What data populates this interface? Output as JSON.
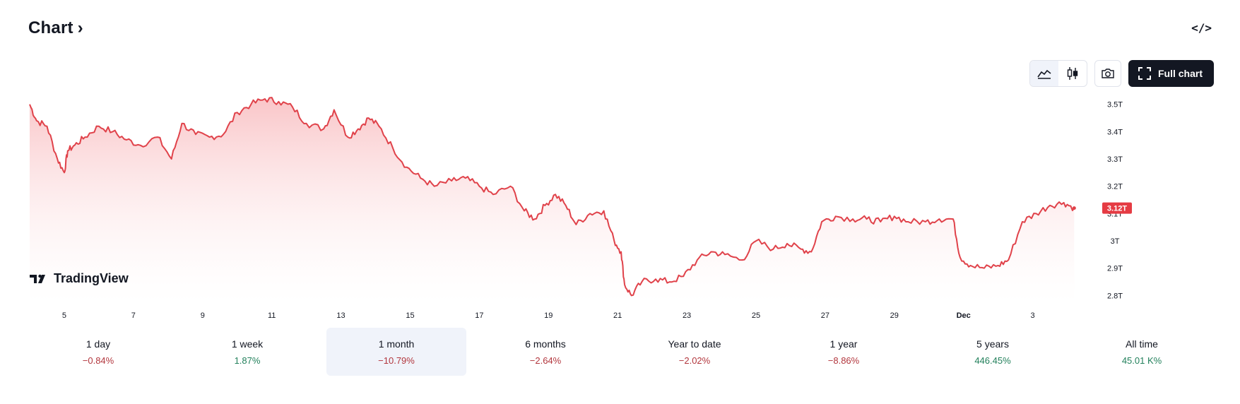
{
  "header": {
    "title": "Chart",
    "embed_label": "</>"
  },
  "toolbar": {
    "full_chart_label": "Full chart"
  },
  "icons": {
    "title_chevron": "chevron-right-icon",
    "embed": "code-icon",
    "area": "area-chart-icon",
    "candles": "candlestick-icon",
    "camera": "camera-icon",
    "fullscreen": "fullscreen-icon"
  },
  "colors": {
    "line": "#e0424a",
    "area_top": "#f9c2c5",
    "price_badge": "#e53b43",
    "negative": "#b2363d",
    "positive": "#22805b",
    "active_bg": "#f0f3fa"
  },
  "watermark": "TradingView",
  "chart_data": {
    "type": "area",
    "x_ticks": [
      "5",
      "7",
      "9",
      "11",
      "13",
      "15",
      "17",
      "19",
      "21",
      "23",
      "25",
      "27",
      "29",
      "Dec",
      "3"
    ],
    "y_ticks": [
      "3.5T",
      "3.4T",
      "3.3T",
      "3.2T",
      "3.1T",
      "3T",
      "2.9T",
      "2.8T"
    ],
    "y_tick_values": [
      3.5,
      3.4,
      3.3,
      3.2,
      3.1,
      3.0,
      2.9,
      2.8
    ],
    "ylim": [
      2.77,
      3.52
    ],
    "last_price_label": "3.12T",
    "last_price": 3.12,
    "series": [
      {
        "x": [
          4,
          4.2,
          4.5,
          4.8,
          5,
          5.1,
          5.3,
          5.6,
          6,
          6.4,
          6.8,
          7.2,
          7.7,
          8.1,
          8.4,
          8.8,
          9.2,
          9.6,
          10,
          10.4,
          10.8,
          11.2,
          11.6,
          12,
          12.5,
          12.8,
          13.2,
          13.5,
          13.8,
          14.1,
          14.5,
          14.9,
          15.3,
          15.7,
          16.2,
          16.6,
          17,
          17.4,
          17.9,
          18.3,
          18.6,
          18.9,
          19.2,
          19.5,
          19.8,
          20.2,
          20.6,
          20.9,
          21.1,
          21.2,
          21.4,
          21.7,
          22.1,
          22.5,
          22.9,
          23.3,
          23.7,
          24.1,
          24.6,
          25,
          25.5,
          25.9,
          26.3,
          26.6,
          26.9,
          27.3,
          27.8,
          28.2,
          28.6,
          29,
          29.4,
          29.9,
          30.3,
          30.7,
          30.9,
          31.2,
          31.6,
          32,
          32.3,
          32.7,
          33.1,
          33.5,
          33.9,
          34.2
        ],
        "y": [
          3.5,
          3.44,
          3.42,
          3.3,
          3.25,
          3.33,
          3.35,
          3.38,
          3.42,
          3.4,
          3.37,
          3.35,
          3.38,
          3.3,
          3.43,
          3.39,
          3.38,
          3.39,
          3.47,
          3.5,
          3.52,
          3.51,
          3.49,
          3.43,
          3.41,
          3.48,
          3.38,
          3.41,
          3.45,
          3.42,
          3.34,
          3.27,
          3.23,
          3.2,
          3.22,
          3.23,
          3.2,
          3.17,
          3.2,
          3.11,
          3.08,
          3.13,
          3.17,
          3.13,
          3.06,
          3.1,
          3.11,
          3.0,
          2.96,
          2.84,
          2.8,
          2.85,
          2.86,
          2.85,
          2.87,
          2.93,
          2.96,
          2.95,
          2.93,
          3.0,
          2.97,
          2.99,
          2.97,
          2.96,
          3.07,
          3.09,
          3.08,
          3.08,
          3.07,
          3.09,
          3.07,
          3.07,
          3.08,
          3.08,
          2.94,
          2.91,
          2.9,
          2.91,
          2.93,
          3.07,
          3.1,
          3.13,
          3.14,
          3.12
        ]
      }
    ]
  },
  "ranges": [
    {
      "label": "1 day",
      "change": "−0.84%",
      "sign": "neg",
      "active": false
    },
    {
      "label": "1 week",
      "change": "1.87%",
      "sign": "pos",
      "active": false
    },
    {
      "label": "1 month",
      "change": "−10.79%",
      "sign": "neg",
      "active": true
    },
    {
      "label": "6 months",
      "change": "−2.64%",
      "sign": "neg",
      "active": false
    },
    {
      "label": "Year to date",
      "change": "−2.02%",
      "sign": "neg",
      "active": false
    },
    {
      "label": "1 year",
      "change": "−8.86%",
      "sign": "neg",
      "active": false
    },
    {
      "label": "5 years",
      "change": "446.45%",
      "sign": "pos",
      "active": false
    },
    {
      "label": "All time",
      "change": "45.01 K%",
      "sign": "pos",
      "active": false
    }
  ]
}
